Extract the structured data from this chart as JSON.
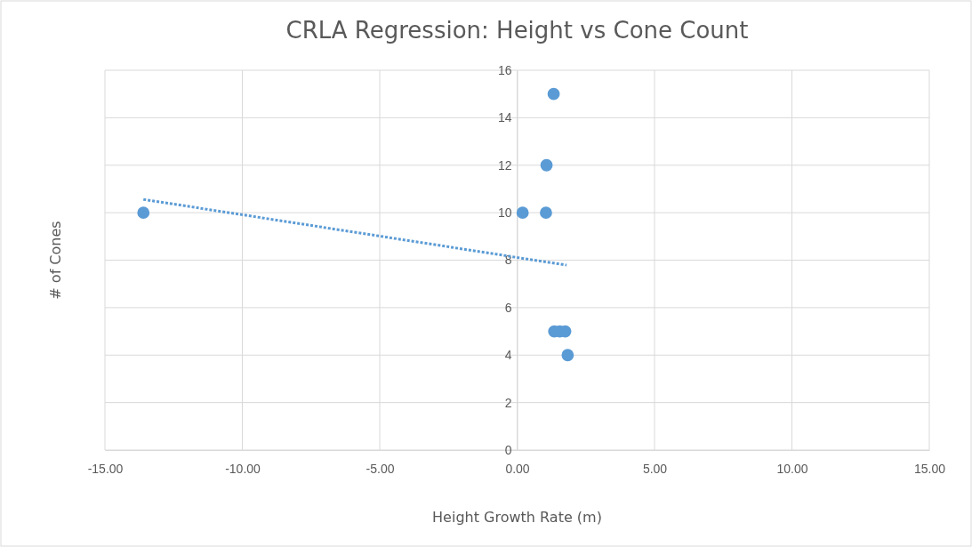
{
  "chart_data": {
    "type": "scatter",
    "title": "CRLA Regression: Height vs Cone Count",
    "xlabel": "Height Growth Rate (m)",
    "ylabel": "# of Cones",
    "xlim": [
      -15,
      15
    ],
    "xticks": [
      {
        "value": -15,
        "label": "-15.00"
      },
      {
        "value": -10,
        "label": "-10.00"
      },
      {
        "value": -5,
        "label": "-5.00"
      },
      {
        "value": 0,
        "label": "0.00"
      },
      {
        "value": 5,
        "label": "5.00"
      },
      {
        "value": 10,
        "label": "10.00"
      },
      {
        "value": 15,
        "label": "15.00"
      }
    ],
    "ylim": [
      0,
      16
    ],
    "yticks": [
      0,
      2,
      4,
      6,
      8,
      10,
      12,
      14,
      16
    ],
    "grid": true,
    "marker": "circle",
    "series": [
      {
        "color": "#5b9bd5",
        "x": [
          -13.6,
          0.2,
          1.05,
          1.07,
          1.33,
          1.35,
          1.55,
          1.75,
          1.84
        ],
        "values": [
          10,
          10,
          10,
          12,
          15,
          5,
          5,
          5,
          4
        ]
      },
      {
        "type": "line",
        "color": "#5b9bd5",
        "line_style": "dotted",
        "marker": "none",
        "x": [
          -13.6,
          1.8
        ],
        "values": [
          10.56,
          7.79
        ]
      }
    ]
  }
}
